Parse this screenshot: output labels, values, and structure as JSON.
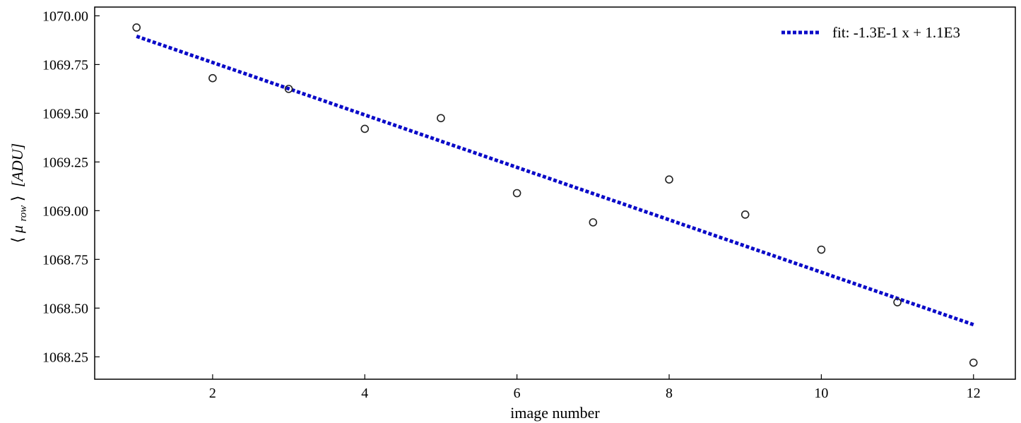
{
  "chart_data": {
    "type": "scatter",
    "xlabel": "image number",
    "ylabel_parts": {
      "open": "⟨",
      "mu": "μ",
      "sub": "row",
      "close": "⟩",
      "unit": "[ADU]"
    },
    "xlim": [
      0.45,
      12.55
    ],
    "ylim": [
      1068.135,
      1070.045
    ],
    "x_ticks": [
      2,
      4,
      6,
      8,
      10,
      12
    ],
    "x_tick_labels": [
      "2",
      "4",
      "6",
      "8",
      "10",
      "12"
    ],
    "y_ticks": [
      1068.25,
      1068.5,
      1068.75,
      1069.0,
      1069.25,
      1069.5,
      1069.75,
      1070.0
    ],
    "y_tick_labels": [
      "1068.25",
      "1068.50",
      "1068.75",
      "1069.00",
      "1069.25",
      "1069.50",
      "1069.75",
      "1070.00"
    ],
    "grid": false,
    "legend_position": "top-right",
    "series": [
      {
        "kind": "scatter",
        "marker": "open-circle",
        "color": "#222222",
        "x": [
          1,
          2,
          3,
          4,
          5,
          6,
          7,
          8,
          9,
          10,
          11,
          12
        ],
        "y": [
          1069.94,
          1069.68,
          1069.625,
          1069.42,
          1069.475,
          1069.09,
          1068.94,
          1069.16,
          1068.98,
          1068.8,
          1068.53,
          1068.22
        ]
      },
      {
        "kind": "line",
        "name": "fit: -1.3E-1 x + 1.1E3",
        "style": "dotted",
        "color": "#0a0ac8",
        "x": [
          1,
          12
        ],
        "y": [
          1069.895,
          1068.415
        ]
      }
    ]
  }
}
